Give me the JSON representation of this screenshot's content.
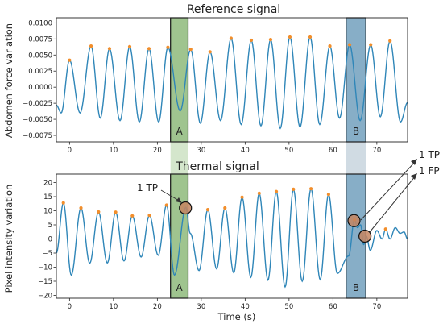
{
  "colors": {
    "series": "#2f86b8",
    "peak": "#f28e2b",
    "region_a": "#7fb069",
    "region_b": "#5f93b4",
    "connector_a": "#d4e6cc",
    "connector_b": "#d0dbe3",
    "circle": "#c58560"
  },
  "chart_data": [
    {
      "type": "line",
      "title": "Reference signal",
      "ylabel": "Abdomen force variation",
      "xlabel": "",
      "xlim": [
        -3,
        77
      ],
      "ylim": [
        -0.0085,
        0.0108
      ],
      "x_ticks": [
        0,
        10,
        20,
        30,
        40,
        50,
        60,
        70
      ],
      "y_ticks": [
        -0.0075,
        -0.005,
        -0.0025,
        0.0,
        0.0025,
        0.005,
        0.0075,
        0.01
      ],
      "y_tick_labels": [
        "−0.0075",
        "−0.0050",
        "−0.0025",
        "0.0000",
        "0.0025",
        "0.0050",
        "0.0075",
        "0.0100"
      ],
      "grid": false,
      "peaks": [
        {
          "x": 0.0,
          "y": 0.0042
        },
        {
          "x": 4.9,
          "y": 0.0064
        },
        {
          "x": 9.1,
          "y": 0.006
        },
        {
          "x": 13.7,
          "y": 0.0063
        },
        {
          "x": 18.1,
          "y": 0.006
        },
        {
          "x": 22.4,
          "y": 0.0062
        },
        {
          "x": 27.6,
          "y": 0.0059
        },
        {
          "x": 32.0,
          "y": 0.0055
        },
        {
          "x": 36.8,
          "y": 0.0076
        },
        {
          "x": 41.4,
          "y": 0.0073
        },
        {
          "x": 45.8,
          "y": 0.0074
        },
        {
          "x": 50.2,
          "y": 0.0078
        },
        {
          "x": 54.8,
          "y": 0.0078
        },
        {
          "x": 59.3,
          "y": 0.0064
        },
        {
          "x": 63.8,
          "y": 0.0066
        },
        {
          "x": 68.6,
          "y": 0.0066
        },
        {
          "x": 73.0,
          "y": 0.0072
        }
      ],
      "troughs": [
        {
          "x": -3.0,
          "y": -0.0028
        },
        {
          "x": -1.9,
          "y": -0.004
        },
        {
          "x": 2.4,
          "y": -0.004
        },
        {
          "x": 7.0,
          "y": -0.0048
        },
        {
          "x": 11.5,
          "y": -0.0052
        },
        {
          "x": 15.9,
          "y": -0.0054
        },
        {
          "x": 20.3,
          "y": -0.0054
        },
        {
          "x": 25.2,
          "y": -0.0037
        },
        {
          "x": 29.8,
          "y": -0.0056
        },
        {
          "x": 34.4,
          "y": -0.0052
        },
        {
          "x": 39.1,
          "y": -0.0058
        },
        {
          "x": 43.6,
          "y": -0.006
        },
        {
          "x": 48.0,
          "y": -0.0064
        },
        {
          "x": 52.5,
          "y": -0.0062
        },
        {
          "x": 57.0,
          "y": -0.0058
        },
        {
          "x": 61.5,
          "y": -0.0048
        },
        {
          "x": 66.2,
          "y": -0.0052
        },
        {
          "x": 70.8,
          "y": -0.0046
        },
        {
          "x": 75.4,
          "y": -0.0054
        },
        {
          "x": 77.0,
          "y": -0.0024
        }
      ],
      "regions": [
        {
          "label": "A",
          "x0": 23.0,
          "x1": 27.0
        },
        {
          "label": "B",
          "x0": 63.0,
          "x1": 67.5
        }
      ]
    },
    {
      "type": "line",
      "title": "Thermal signal",
      "ylabel": "Pixel intensity variation",
      "xlabel": "Time (s)",
      "xlim": [
        -3,
        77
      ],
      "ylim": [
        -21,
        23
      ],
      "x_ticks": [
        0,
        10,
        20,
        30,
        40,
        50,
        60,
        70
      ],
      "y_ticks": [
        -20,
        -15,
        -10,
        -5,
        0,
        5,
        10,
        15,
        20
      ],
      "y_tick_labels": [
        "−20",
        "−15",
        "−10",
        "−5",
        "0",
        "5",
        "10",
        "15",
        "20"
      ],
      "grid": false,
      "peaks": [
        {
          "x": -1.4,
          "y": 12.8
        },
        {
          "x": 2.6,
          "y": 11.0
        },
        {
          "x": 6.6,
          "y": 9.6
        },
        {
          "x": 10.5,
          "y": 9.5
        },
        {
          "x": 14.3,
          "y": 8.2
        },
        {
          "x": 18.2,
          "y": 8.4
        },
        {
          "x": 22.1,
          "y": 12.0
        },
        {
          "x": 31.5,
          "y": 10.4
        },
        {
          "x": 35.4,
          "y": 11.0
        },
        {
          "x": 39.3,
          "y": 14.8
        },
        {
          "x": 43.2,
          "y": 16.2
        },
        {
          "x": 47.1,
          "y": 16.8
        },
        {
          "x": 51.0,
          "y": 17.6
        },
        {
          "x": 55.0,
          "y": 17.8
        },
        {
          "x": 59.0,
          "y": 15.8
        }
      ],
      "troughs": [
        {
          "x": -3.0,
          "y": -5.0
        },
        {
          "x": 0.4,
          "y": -12.8
        },
        {
          "x": 4.6,
          "y": -8.6
        },
        {
          "x": 8.6,
          "y": -8.5
        },
        {
          "x": 12.4,
          "y": -7.8
        },
        {
          "x": 16.3,
          "y": -6.4
        },
        {
          "x": 20.2,
          "y": -5.8
        },
        {
          "x": 23.9,
          "y": -12.8
        },
        {
          "x": 29.5,
          "y": -11.2
        },
        {
          "x": 33.5,
          "y": -10.6
        },
        {
          "x": 37.4,
          "y": -12.0
        },
        {
          "x": 41.3,
          "y": -13.6
        },
        {
          "x": 45.2,
          "y": -14.6
        },
        {
          "x": 49.1,
          "y": -17.0
        },
        {
          "x": 53.0,
          "y": -15.0
        },
        {
          "x": 57.1,
          "y": -14.4
        },
        {
          "x": 61.0,
          "y": -12.2
        },
        {
          "x": 63.6,
          "y": -6.0
        }
      ],
      "tail": [
        {
          "x": 63.6,
          "y": -6.0
        },
        {
          "x": 64.9,
          "y": 7.0
        },
        {
          "x": 65.6,
          "y": 4.0
        },
        {
          "x": 66.3,
          "y": 5.0
        },
        {
          "x": 67.0,
          "y": -2.0
        },
        {
          "x": 67.6,
          "y": 1.0
        },
        {
          "x": 68.5,
          "y": -4.0
        },
        {
          "x": 70.0,
          "y": 3.0
        },
        {
          "x": 71.2,
          "y": 0.0
        },
        {
          "x": 72.0,
          "y": 3.5
        },
        {
          "x": 73.0,
          "y": 0.0
        },
        {
          "x": 74.2,
          "y": 4.0
        },
        {
          "x": 75.3,
          "y": 2.0
        },
        {
          "x": 76.2,
          "y": 2.5
        },
        {
          "x": 77.0,
          "y": 0.0
        }
      ],
      "extra_points": [
        {
          "x": 26.5,
          "y": 11.2
        },
        {
          "x": 27.5,
          "y": 2.0
        }
      ],
      "tail_peaks": [
        {
          "x": 64.9,
          "y": 6.8
        },
        {
          "x": 72.0,
          "y": 3.5
        }
      ],
      "markers": [
        {
          "x": 26.4,
          "y": 11.0
        },
        {
          "x": 64.8,
          "y": 6.5
        },
        {
          "x": 67.3,
          "y": 1.0
        }
      ],
      "regions": [
        {
          "label": "A",
          "x0": 23.0,
          "x1": 27.0
        },
        {
          "label": "B",
          "x0": 63.0,
          "x1": 67.5
        }
      ],
      "annotations": [
        {
          "text": "1 TP",
          "target": 0
        },
        {
          "text": "1 TP",
          "target": 1
        },
        {
          "text": "1 FP",
          "target": 1
        }
      ]
    }
  ]
}
